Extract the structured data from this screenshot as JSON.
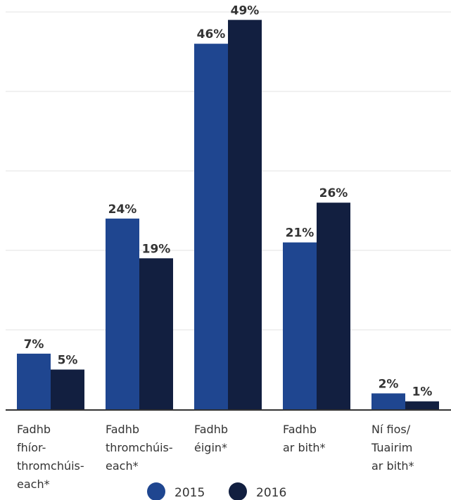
{
  "chart_data": {
    "type": "bar",
    "categories": [
      [
        "Fadhb",
        "fhíor-",
        "thromchúis-",
        "each*"
      ],
      [
        "Fadhb",
        "thromchúis-",
        "each*"
      ],
      [
        "Fadhb",
        "éigin*"
      ],
      [
        "Fadhb",
        "ar bith*"
      ],
      [
        "Ní fios/",
        "Tuairim",
        "ar bith*"
      ]
    ],
    "series": [
      {
        "name": "2015",
        "color": "#1f4690",
        "values": [
          7,
          24,
          46,
          21,
          2
        ],
        "labels": [
          "7%",
          "24%",
          "46%",
          "21%",
          "2%"
        ]
      },
      {
        "name": "2016",
        "color": "#121f40",
        "values": [
          5,
          19,
          49,
          26,
          1
        ],
        "labels": [
          "5%",
          "19%",
          "49%",
          "26%",
          "1%"
        ]
      }
    ],
    "ylim": [
      0,
      50
    ],
    "grid": true,
    "legend": "bottom-center"
  }
}
